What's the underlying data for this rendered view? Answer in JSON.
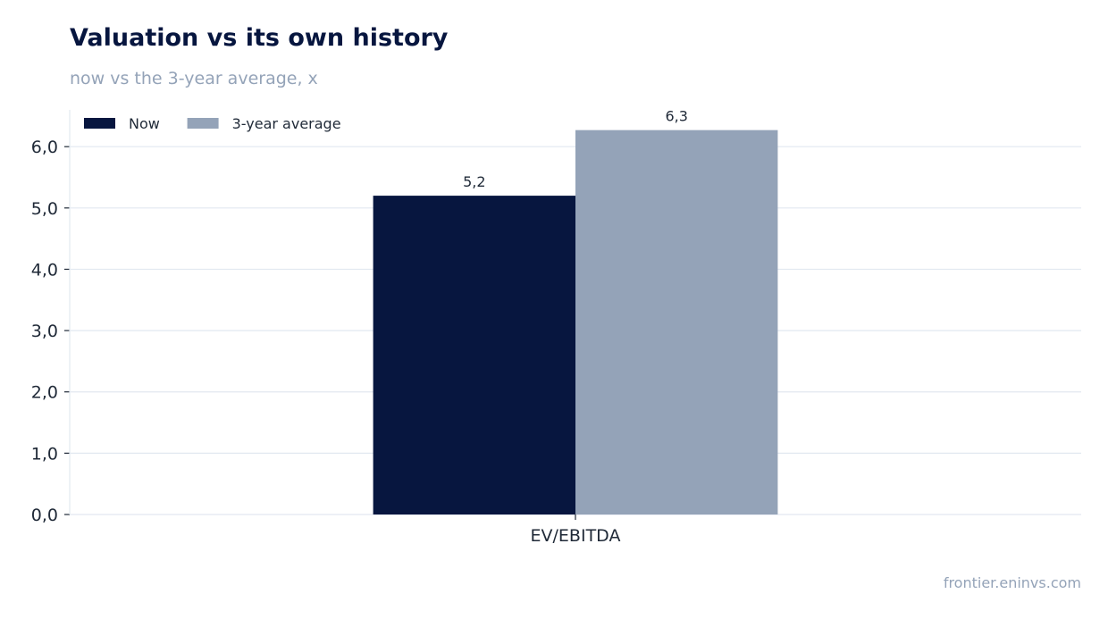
{
  "header": {
    "title": "Valuation vs its own history",
    "subtitle": "now vs the 3-year average, x"
  },
  "footer": {
    "source": "frontier.eninvs.com"
  },
  "chart_data": {
    "type": "bar",
    "categories": [
      "EV/EBITDA"
    ],
    "series": [
      {
        "name": "Now",
        "values": [
          5.2
        ],
        "labels": [
          "5,2"
        ],
        "color": "#07163f"
      },
      {
        "name": "3-year average",
        "values": [
          6.27
        ],
        "labels": [
          "6,3"
        ],
        "color": "#94a3b8"
      }
    ],
    "ylim": [
      0,
      6.6
    ],
    "yticks": [
      0,
      1,
      2,
      3,
      4,
      5,
      6
    ],
    "ytick_labels": [
      "0,0",
      "1,0",
      "2,0",
      "3,0",
      "4,0",
      "5,0",
      "6,0"
    ],
    "grid": true,
    "legend": "top-left",
    "colors": {
      "grid": "#e2e8f0",
      "axis": "#e2e8f0",
      "text": "#1f2937"
    }
  }
}
